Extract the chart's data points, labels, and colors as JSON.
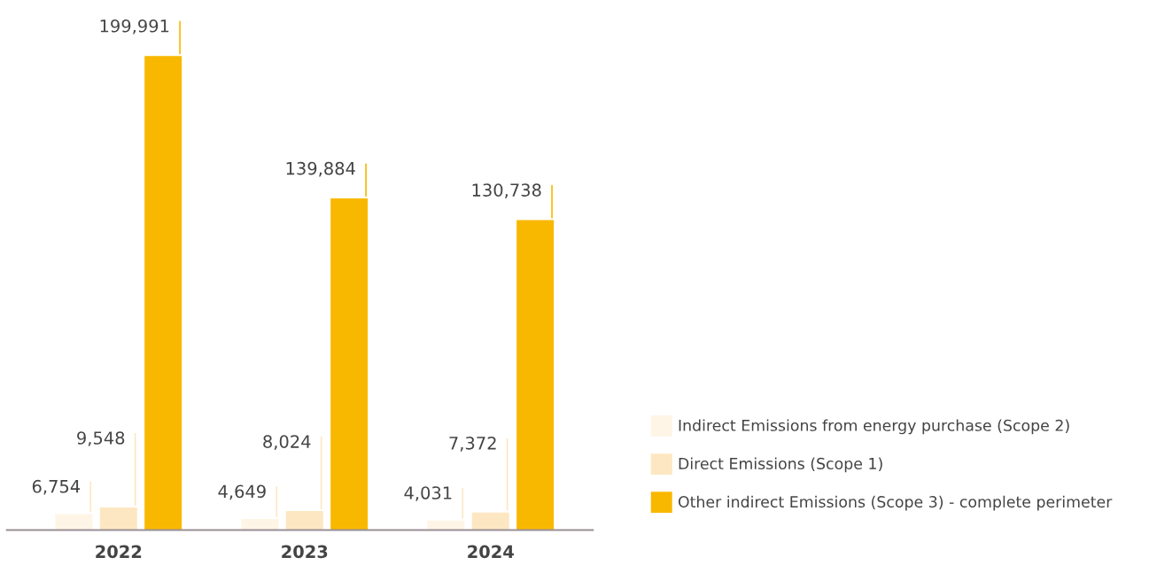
{
  "chart_data": {
    "type": "bar",
    "categories": [
      "2022",
      "2023",
      "2024"
    ],
    "series": [
      {
        "name": "Indirect Emissions from energy purchase (Scope 2)",
        "color": "#fef5e6",
        "values": [
          6754,
          4649,
          4031
        ],
        "value_labels": [
          "6,754",
          "4,649",
          "4,031"
        ]
      },
      {
        "name": "Direct Emissions (Scope 1)",
        "color": "#fde7c2",
        "values": [
          9548,
          8024,
          7372
        ],
        "value_labels": [
          "9,548",
          "8,024",
          "7,372"
        ]
      },
      {
        "name": "Other indirect Emissions (Scope 3) - complete perimeter",
        "color": "#f9b800",
        "values": [
          199991,
          139884,
          130738
        ],
        "value_labels": [
          "199,991",
          "139,884",
          "130,738"
        ]
      }
    ],
    "legend": "right",
    "grid": false
  }
}
